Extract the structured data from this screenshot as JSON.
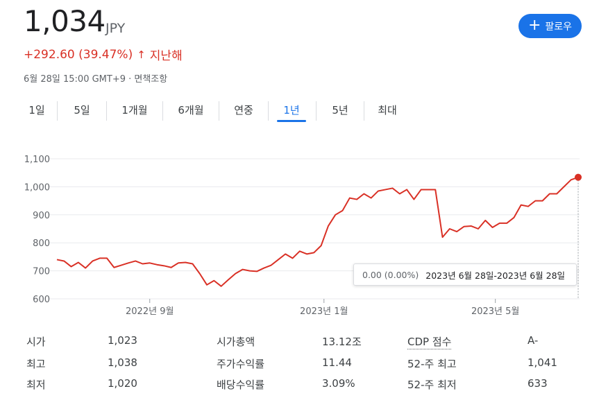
{
  "quote": {
    "price": "1,034",
    "currency": "JPY",
    "change": "+292.60 (39.47%)",
    "change_arrow": "↑",
    "period": "지난해",
    "timestamp": "6월 28일 15:00 GMT+9 · 면책조항",
    "change_color": "#d93025"
  },
  "follow_button": {
    "icon": "plus-icon",
    "label": "팔로우",
    "color": "#1a73e8"
  },
  "tabs": [
    {
      "label": "1일",
      "active": false
    },
    {
      "label": "5일",
      "active": false
    },
    {
      "label": "1개월",
      "active": false
    },
    {
      "label": "6개월",
      "active": false
    },
    {
      "label": "연중",
      "active": false
    },
    {
      "label": "1년",
      "active": true
    },
    {
      "label": "5년",
      "active": false
    },
    {
      "label": "최대",
      "active": false
    }
  ],
  "tooltip": {
    "change": "0.00 (0.00%)",
    "range": "2023년 6월 28일-2023년 6월 28일"
  },
  "chart_data": {
    "type": "line",
    "title": "",
    "xlabel": "",
    "ylabel": "",
    "ylim": [
      600,
      1100
    ],
    "yticks": [
      600,
      700,
      800,
      900,
      1000,
      1100
    ],
    "ytick_labels": [
      "600",
      "700",
      "800",
      "900",
      "1,000",
      "1,100"
    ],
    "xticks": [
      {
        "date": "2022-09-01",
        "label": "2022년 9월"
      },
      {
        "date": "2023-01-01",
        "label": "2023년 1월"
      },
      {
        "date": "2023-05-01",
        "label": "2023년 5월"
      }
    ],
    "xlim": [
      "2022-06-28",
      "2023-06-28"
    ],
    "grid": "horizontal",
    "line_color": "#d93025",
    "series": [
      {
        "x": [
          "2022-06-28",
          "2022-07-03",
          "2022-07-08",
          "2022-07-13",
          "2022-07-18",
          "2022-07-23",
          "2022-07-28",
          "2022-08-02",
          "2022-08-07",
          "2022-08-12",
          "2022-08-17",
          "2022-08-22",
          "2022-08-27",
          "2022-09-01",
          "2022-09-06",
          "2022-09-11",
          "2022-09-16",
          "2022-09-21",
          "2022-09-26",
          "2022-10-01",
          "2022-10-06",
          "2022-10-11",
          "2022-10-16",
          "2022-10-21",
          "2022-10-26",
          "2022-10-31",
          "2022-11-05",
          "2022-11-10",
          "2022-11-15",
          "2022-11-20",
          "2022-11-25",
          "2022-11-30",
          "2022-12-05",
          "2022-12-10",
          "2022-12-15",
          "2022-12-20",
          "2022-12-25",
          "2022-12-30",
          "2023-01-04",
          "2023-01-09",
          "2023-01-14",
          "2023-01-19",
          "2023-01-24",
          "2023-01-29",
          "2023-02-03",
          "2023-02-08",
          "2023-02-13",
          "2023-02-18",
          "2023-02-23",
          "2023-02-28",
          "2023-03-05",
          "2023-03-10",
          "2023-03-15",
          "2023-03-20",
          "2023-03-25",
          "2023-03-30",
          "2023-04-04",
          "2023-04-09",
          "2023-04-14",
          "2023-04-19",
          "2023-04-24",
          "2023-04-29",
          "2023-05-04",
          "2023-05-09",
          "2023-05-14",
          "2023-05-19",
          "2023-05-24",
          "2023-05-29",
          "2023-06-03",
          "2023-06-08",
          "2023-06-13",
          "2023-06-18",
          "2023-06-23",
          "2023-06-28"
        ],
        "y": [
          740,
          735,
          715,
          730,
          710,
          735,
          745,
          745,
          712,
          720,
          728,
          735,
          725,
          728,
          722,
          718,
          712,
          728,
          730,
          725,
          690,
          650,
          665,
          645,
          668,
          690,
          705,
          700,
          698,
          710,
          720,
          740,
          760,
          745,
          770,
          760,
          765,
          790,
          860,
          900,
          915,
          960,
          955,
          975,
          960,
          985,
          990,
          995,
          975,
          990,
          955,
          990,
          990,
          990,
          820,
          850,
          840,
          858,
          860,
          850,
          880,
          855,
          870,
          870,
          890,
          935,
          930,
          950,
          950,
          975,
          975,
          1000,
          1025,
          1034
        ]
      }
    ]
  },
  "stats": [
    {
      "label": "시가",
      "value": "1,023",
      "label2": "시가총액",
      "value2": "13.12조",
      "label3": "CDP 점수",
      "value3": "A-"
    },
    {
      "label": "최고",
      "value": "1,038",
      "label2": "주가수익률",
      "value2": "11.44",
      "label3": "52-주 최고",
      "value3": "1,041"
    },
    {
      "label": "최저",
      "value": "1,020",
      "label2": "배당수익률",
      "value2": "3.09%",
      "label3": "52-주 최저",
      "value3": "633"
    }
  ]
}
